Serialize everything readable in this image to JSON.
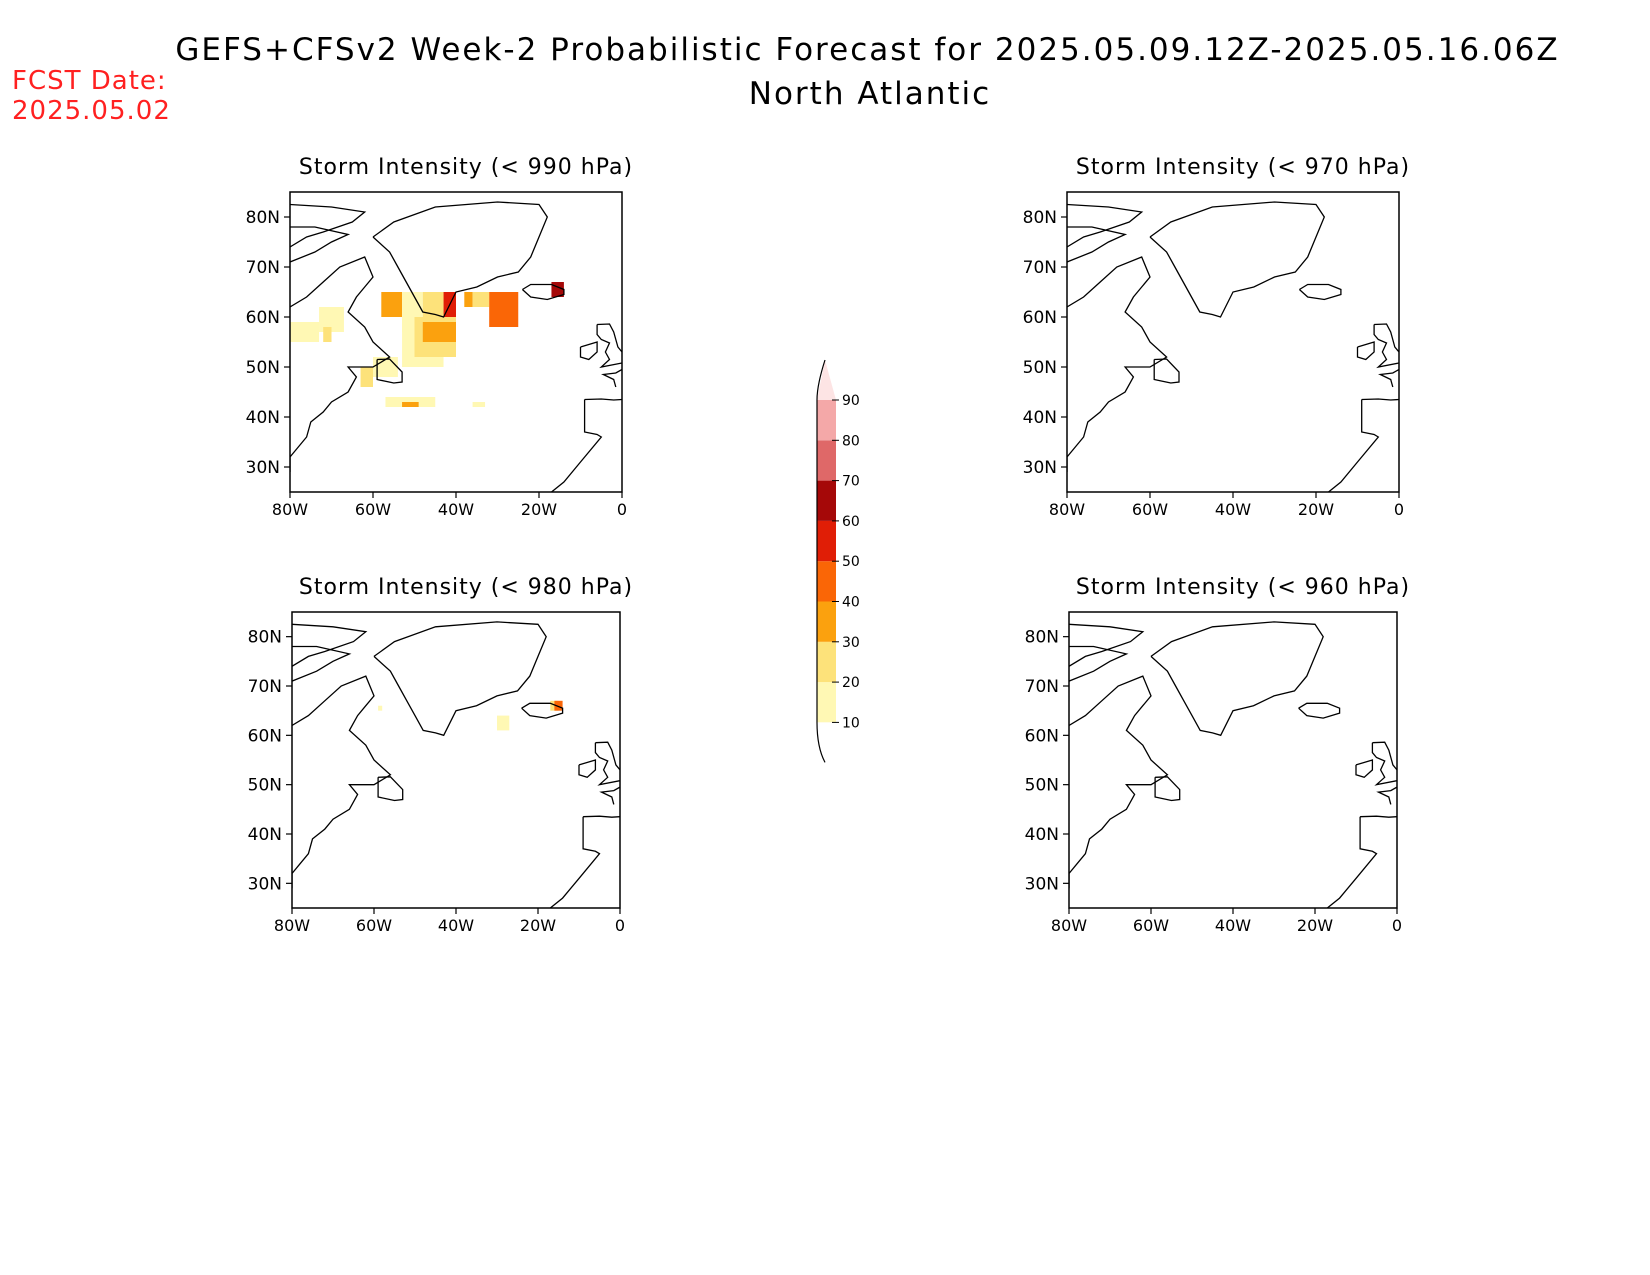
{
  "header": {
    "title": "GEFS+CFSv2 Week-2 Probabilistic Forecast for 2025.05.09.12Z-2025.05.16.06Z",
    "region": "North Atlantic",
    "fcst_label": "FCST Date:",
    "fcst_date": "2025.05.02"
  },
  "colors": {
    "c10": "#fff8b4",
    "c20": "#fde27a",
    "c30": "#fba10e",
    "c40": "#fa6606",
    "c50": "#e01e06",
    "c60": "#a50808",
    "c70": "#df6868",
    "c80": "#f4a8a8",
    "c90": "#fde4e4"
  },
  "chart_data": [
    {
      "type": "heatmap",
      "title": "Storm Intensity (< 990 hPa)",
      "x_ticks": [
        "80W",
        "60W",
        "40W",
        "20W",
        "0"
      ],
      "y_ticks": [
        "80N",
        "70N",
        "60N",
        "50N",
        "40N",
        "30N"
      ],
      "xlim": [
        -80,
        0
      ],
      "ylim": [
        25,
        85
      ],
      "cells": [
        {
          "lon0": -58,
          "lon1": -53,
          "lat0": 60,
          "lat1": 65,
          "value": 30
        },
        {
          "lon0": -53,
          "lon1": -48,
          "lat0": 57,
          "lat1": 65,
          "value": 10
        },
        {
          "lon0": -48,
          "lon1": -43,
          "lat0": 60,
          "lat1": 65,
          "value": 20
        },
        {
          "lon0": -43,
          "lon1": -40,
          "lat0": 60,
          "lat1": 65,
          "value": 50
        },
        {
          "lon0": -38,
          "lon1": -36,
          "lat0": 62,
          "lat1": 65,
          "value": 30
        },
        {
          "lon0": -36,
          "lon1": -32,
          "lat0": 62,
          "lat1": 65,
          "value": 20
        },
        {
          "lon0": -32,
          "lon1": -25,
          "lat0": 58,
          "lat1": 65,
          "value": 40
        },
        {
          "lon0": -17,
          "lon1": -14,
          "lat0": 64,
          "lat1": 67,
          "value": 60
        },
        {
          "lon0": -53,
          "lon1": -43,
          "lat0": 50,
          "lat1": 60,
          "value": 10
        },
        {
          "lon0": -50,
          "lon1": -40,
          "lat0": 52,
          "lat1": 60,
          "value": 20
        },
        {
          "lon0": -48,
          "lon1": -40,
          "lat0": 55,
          "lat1": 59,
          "value": 30
        },
        {
          "lon0": -73,
          "lon1": -67,
          "lat0": 57,
          "lat1": 62,
          "value": 10
        },
        {
          "lon0": -80,
          "lon1": -73,
          "lat0": 55,
          "lat1": 59,
          "value": 10
        },
        {
          "lon0": -72,
          "lon1": -70,
          "lat0": 55,
          "lat1": 58,
          "value": 20
        },
        {
          "lon0": -60,
          "lon1": -54,
          "lat0": 48,
          "lat1": 52,
          "value": 10
        },
        {
          "lon0": -63,
          "lon1": -60,
          "lat0": 46,
          "lat1": 50,
          "value": 20
        },
        {
          "lon0": -57,
          "lon1": -45,
          "lat0": 42,
          "lat1": 44,
          "value": 10
        },
        {
          "lon0": -53,
          "lon1": -49,
          "lat0": 42,
          "lat1": 43,
          "value": 30
        },
        {
          "lon0": -36,
          "lon1": -33,
          "lat0": 42,
          "lat1": 43,
          "value": 10
        }
      ]
    },
    {
      "type": "heatmap",
      "title": "Storm Intensity (< 970 hPa)",
      "x_ticks": [
        "80W",
        "60W",
        "40W",
        "20W",
        "0"
      ],
      "y_ticks": [
        "80N",
        "70N",
        "60N",
        "50N",
        "40N",
        "30N"
      ],
      "xlim": [
        -80,
        0
      ],
      "ylim": [
        25,
        85
      ],
      "cells": []
    },
    {
      "type": "heatmap",
      "title": "Storm Intensity (< 980 hPa)",
      "x_ticks": [
        "80W",
        "60W",
        "40W",
        "20W",
        "0"
      ],
      "y_ticks": [
        "80N",
        "70N",
        "60N",
        "50N",
        "40N",
        "30N"
      ],
      "xlim": [
        -80,
        0
      ],
      "ylim": [
        25,
        85
      ],
      "cells": [
        {
          "lon0": -30,
          "lon1": -27,
          "lat0": 61,
          "lat1": 64,
          "value": 10
        },
        {
          "lon0": -17,
          "lon1": -15,
          "lat0": 65,
          "lat1": 67,
          "value": 20
        },
        {
          "lon0": -16,
          "lon1": -14,
          "lat0": 65,
          "lat1": 67,
          "value": 40
        },
        {
          "lon0": -59,
          "lon1": -58,
          "lat0": 65,
          "lat1": 66,
          "value": 10
        }
      ]
    },
    {
      "type": "heatmap",
      "title": "Storm Intensity (< 960 hPa)",
      "x_ticks": [
        "80W",
        "60W",
        "40W",
        "20W",
        "0"
      ],
      "y_ticks": [
        "80N",
        "70N",
        "60N",
        "50N",
        "40N",
        "30N"
      ],
      "xlim": [
        -80,
        0
      ],
      "ylim": [
        25,
        85
      ],
      "cells": []
    }
  ],
  "colorbar": {
    "labels": [
      "10",
      "20",
      "30",
      "40",
      "50",
      "60",
      "70",
      "80",
      "90"
    ]
  }
}
